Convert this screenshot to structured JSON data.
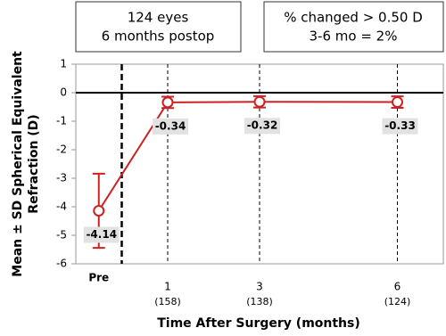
{
  "chart_data": {
    "type": "line",
    "ylabel": [
      "Mean ± SD Spherical Equivalent",
      "Refraction (D)"
    ],
    "xlabel": "Time After Surgery (months)",
    "x": [
      -0.5,
      1,
      3,
      6
    ],
    "series": [
      {
        "color": "#cc2222",
        "values": [
          -4.14,
          -0.34,
          -0.32,
          -0.33
        ],
        "errors": [
          1.3,
          0.2,
          0.2,
          0.2
        ]
      }
    ],
    "xlim": [
      -1,
      7
    ],
    "ylim": [
      -6,
      1
    ],
    "xticks": [
      {
        "value": -0.5,
        "label": "Pre"
      },
      1,
      3,
      6
    ],
    "xtick_sublabels": [
      null,
      "(158)",
      "(138)",
      "(124)"
    ],
    "yticks": [
      1,
      0,
      -1,
      -2,
      -3,
      -4,
      -5,
      -6
    ],
    "vline": 0,
    "hline": 0,
    "annotations": [
      [
        "124 eyes",
        "6 months postop"
      ],
      [
        "% changed > 0.50 D",
        "3-6 mo = 2%"
      ]
    ]
  }
}
